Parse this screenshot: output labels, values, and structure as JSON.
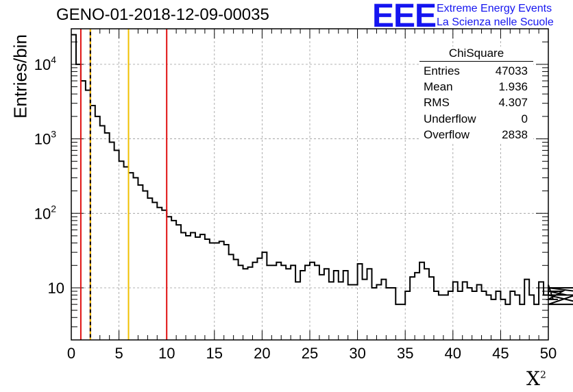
{
  "header": {
    "title": "GENO-01-2018-12-09-00035",
    "logo_text": "EEE",
    "logo_line1": "Extreme Energy Events",
    "logo_line2": "La Scienza nelle Scuole"
  },
  "colors": {
    "red_line": "#e01010",
    "yellow_line": "#f0c000",
    "logo_blue": "#1515f0",
    "grid": "#999999"
  },
  "chart_data": {
    "type": "histogram",
    "title": "GENO-01-2018-12-09-00035",
    "xlabel": "X",
    "xlabel_superscript": "2",
    "ylabel": "Entries/bin",
    "xlim": [
      0,
      50
    ],
    "ylim": [
      2,
      30000
    ],
    "yscale": "log",
    "grid": true,
    "bin_width": 0.5,
    "x_ticks": [
      "0",
      "5",
      "10",
      "15",
      "20",
      "25",
      "30",
      "35",
      "40",
      "45",
      "50"
    ],
    "y_ticks": [
      {
        "value": 10,
        "label": "10",
        "exponent": ""
      },
      {
        "value": 100,
        "label": "10",
        "exponent": "2"
      },
      {
        "value": 1000,
        "label": "10",
        "exponent": "3"
      },
      {
        "value": 10000,
        "label": "10",
        "exponent": "4"
      }
    ],
    "vertical_lines": [
      {
        "x": 1,
        "color": "red",
        "style": "solid"
      },
      {
        "x": 2,
        "color": "red",
        "style": "solid"
      },
      {
        "x": 2,
        "color": "yellow",
        "style": "dashed"
      },
      {
        "x": 6,
        "color": "yellow",
        "style": "solid"
      },
      {
        "x": 10,
        "color": "red",
        "style": "solid"
      }
    ],
    "values": [
      25000,
      10000,
      6000,
      4500,
      2800,
      2000,
      1500,
      1200,
      900,
      700,
      500,
      420,
      350,
      300,
      240,
      200,
      160,
      140,
      120,
      110,
      90,
      80,
      70,
      55,
      50,
      55,
      48,
      52,
      45,
      40,
      40,
      42,
      38,
      28,
      24,
      20,
      18,
      19,
      22,
      25,
      30,
      20,
      20,
      22,
      20,
      18,
      20,
      12,
      17,
      20,
      22,
      20,
      15,
      18,
      12,
      17,
      12,
      17,
      11,
      11,
      21,
      13,
      18,
      10,
      11,
      13,
      10,
      10,
      6,
      6,
      9,
      14,
      16,
      22,
      18,
      14,
      9,
      8,
      8,
      9,
      12,
      9,
      12,
      10,
      9,
      11,
      9,
      8,
      7,
      9,
      7,
      6,
      9,
      8,
      6,
      13,
      8,
      6,
      12,
      8,
      11,
      7,
      7,
      9,
      8,
      8,
      8,
      8,
      6,
      6,
      10,
      10,
      8
    ],
    "stats_box": {
      "title": "ChiSquare",
      "entries": [
        {
          "label": "Entries",
          "value": "47033"
        },
        {
          "label": "Mean",
          "value": "1.936"
        },
        {
          "label": "RMS",
          "value": "4.307"
        },
        {
          "label": "Underflow",
          "value": "0"
        },
        {
          "label": "Overflow",
          "value": "2838"
        }
      ]
    }
  }
}
